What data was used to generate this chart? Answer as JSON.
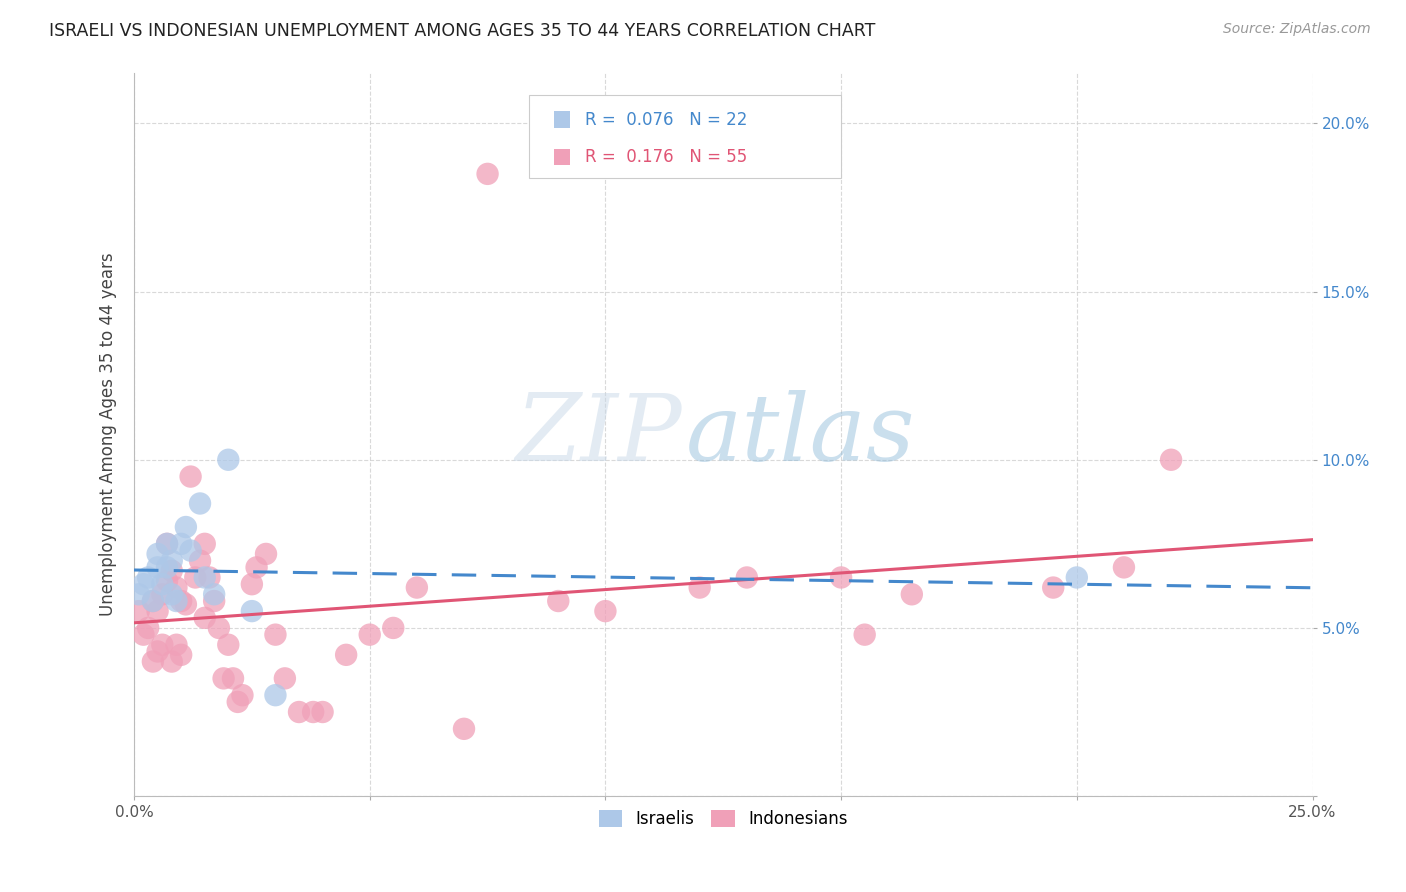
{
  "title": "ISRAELI VS INDONESIAN UNEMPLOYMENT AMONG AGES 35 TO 44 YEARS CORRELATION CHART",
  "source": "Source: ZipAtlas.com",
  "ylabel": "Unemployment Among Ages 35 to 44 years",
  "xlim": [
    0.0,
    0.25
  ],
  "ylim": [
    0.0,
    0.215
  ],
  "xticks": [
    0.0,
    0.05,
    0.1,
    0.15,
    0.2,
    0.25
  ],
  "yticks": [
    0.0,
    0.05,
    0.1,
    0.15,
    0.2
  ],
  "xticklabels_show": [
    "0.0%",
    "25.0%"
  ],
  "yticklabels_show": [
    "5.0%",
    "10.0%",
    "15.0%",
    "20.0%"
  ],
  "grid_color": "#d0d0d0",
  "background_color": "#ffffff",
  "israelis_color": "#adc8e8",
  "indonesians_color": "#f0a0b8",
  "israelis_line_color": "#4488cc",
  "indonesians_line_color": "#e05575",
  "R_israelis": 0.076,
  "N_israelis": 22,
  "R_indonesians": 0.176,
  "N_indonesians": 55,
  "watermark_zip": "ZIP",
  "watermark_atlas": "atlas",
  "israelis_x": [
    0.001,
    0.002,
    0.003,
    0.004,
    0.005,
    0.005,
    0.006,
    0.007,
    0.007,
    0.008,
    0.008,
    0.009,
    0.01,
    0.011,
    0.012,
    0.014,
    0.015,
    0.017,
    0.02,
    0.025,
    0.03,
    0.2
  ],
  "israelis_y": [
    0.06,
    0.063,
    0.065,
    0.058,
    0.072,
    0.068,
    0.063,
    0.068,
    0.075,
    0.07,
    0.06,
    0.058,
    0.075,
    0.08,
    0.073,
    0.087,
    0.065,
    0.06,
    0.1,
    0.055,
    0.03,
    0.065
  ],
  "indonesians_x": [
    0.001,
    0.002,
    0.003,
    0.004,
    0.004,
    0.005,
    0.005,
    0.006,
    0.006,
    0.007,
    0.007,
    0.008,
    0.008,
    0.009,
    0.009,
    0.01,
    0.01,
    0.011,
    0.012,
    0.013,
    0.014,
    0.015,
    0.015,
    0.016,
    0.017,
    0.018,
    0.019,
    0.02,
    0.021,
    0.022,
    0.023,
    0.025,
    0.026,
    0.028,
    0.03,
    0.032,
    0.035,
    0.038,
    0.04,
    0.045,
    0.05,
    0.055,
    0.06,
    0.07,
    0.075,
    0.09,
    0.1,
    0.12,
    0.13,
    0.15,
    0.155,
    0.165,
    0.195,
    0.21,
    0.22
  ],
  "indonesians_y": [
    0.055,
    0.048,
    0.05,
    0.058,
    0.04,
    0.055,
    0.043,
    0.06,
    0.045,
    0.064,
    0.075,
    0.067,
    0.04,
    0.062,
    0.045,
    0.058,
    0.042,
    0.057,
    0.095,
    0.065,
    0.07,
    0.075,
    0.053,
    0.065,
    0.058,
    0.05,
    0.035,
    0.045,
    0.035,
    0.028,
    0.03,
    0.063,
    0.068,
    0.072,
    0.048,
    0.035,
    0.025,
    0.025,
    0.025,
    0.042,
    0.048,
    0.05,
    0.062,
    0.02,
    0.185,
    0.058,
    0.055,
    0.062,
    0.065,
    0.065,
    0.048,
    0.06,
    0.062,
    0.068,
    0.1
  ]
}
